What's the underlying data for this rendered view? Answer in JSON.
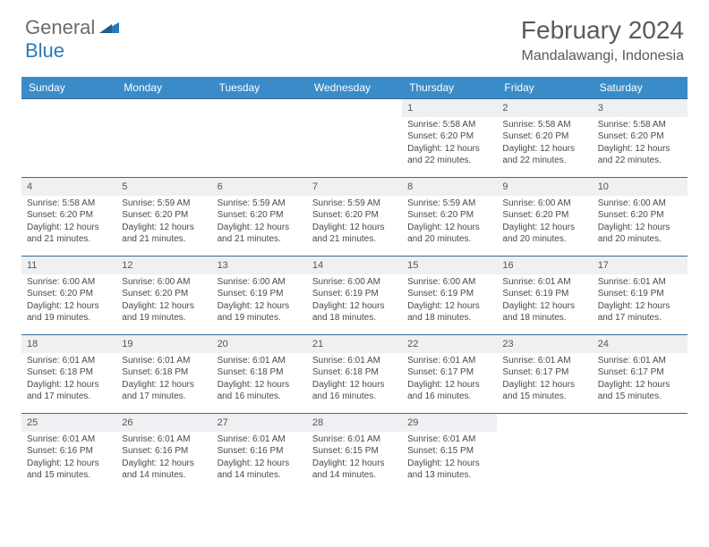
{
  "logo": {
    "text1": "General",
    "text2": "Blue",
    "color_gray": "#6b6b6b",
    "color_blue": "#2a7ab8"
  },
  "title": "February 2024",
  "location": "Mandalawangi, Indonesia",
  "colors": {
    "header_bg": "#3a8cc9",
    "header_text": "#ffffff",
    "daynum_bg": "#eef0f2",
    "border": "#3a6a95",
    "body_text": "#4a4a4a"
  },
  "weekday_labels": [
    "Sunday",
    "Monday",
    "Tuesday",
    "Wednesday",
    "Thursday",
    "Friday",
    "Saturday"
  ],
  "weeks": [
    [
      null,
      null,
      null,
      null,
      {
        "n": "1",
        "sr": "Sunrise: 5:58 AM",
        "ss": "Sunset: 6:20 PM",
        "dl": "Daylight: 12 hours and 22 minutes."
      },
      {
        "n": "2",
        "sr": "Sunrise: 5:58 AM",
        "ss": "Sunset: 6:20 PM",
        "dl": "Daylight: 12 hours and 22 minutes."
      },
      {
        "n": "3",
        "sr": "Sunrise: 5:58 AM",
        "ss": "Sunset: 6:20 PM",
        "dl": "Daylight: 12 hours and 22 minutes."
      }
    ],
    [
      {
        "n": "4",
        "sr": "Sunrise: 5:58 AM",
        "ss": "Sunset: 6:20 PM",
        "dl": "Daylight: 12 hours and 21 minutes."
      },
      {
        "n": "5",
        "sr": "Sunrise: 5:59 AM",
        "ss": "Sunset: 6:20 PM",
        "dl": "Daylight: 12 hours and 21 minutes."
      },
      {
        "n": "6",
        "sr": "Sunrise: 5:59 AM",
        "ss": "Sunset: 6:20 PM",
        "dl": "Daylight: 12 hours and 21 minutes."
      },
      {
        "n": "7",
        "sr": "Sunrise: 5:59 AM",
        "ss": "Sunset: 6:20 PM",
        "dl": "Daylight: 12 hours and 21 minutes."
      },
      {
        "n": "8",
        "sr": "Sunrise: 5:59 AM",
        "ss": "Sunset: 6:20 PM",
        "dl": "Daylight: 12 hours and 20 minutes."
      },
      {
        "n": "9",
        "sr": "Sunrise: 6:00 AM",
        "ss": "Sunset: 6:20 PM",
        "dl": "Daylight: 12 hours and 20 minutes."
      },
      {
        "n": "10",
        "sr": "Sunrise: 6:00 AM",
        "ss": "Sunset: 6:20 PM",
        "dl": "Daylight: 12 hours and 20 minutes."
      }
    ],
    [
      {
        "n": "11",
        "sr": "Sunrise: 6:00 AM",
        "ss": "Sunset: 6:20 PM",
        "dl": "Daylight: 12 hours and 19 minutes."
      },
      {
        "n": "12",
        "sr": "Sunrise: 6:00 AM",
        "ss": "Sunset: 6:20 PM",
        "dl": "Daylight: 12 hours and 19 minutes."
      },
      {
        "n": "13",
        "sr": "Sunrise: 6:00 AM",
        "ss": "Sunset: 6:19 PM",
        "dl": "Daylight: 12 hours and 19 minutes."
      },
      {
        "n": "14",
        "sr": "Sunrise: 6:00 AM",
        "ss": "Sunset: 6:19 PM",
        "dl": "Daylight: 12 hours and 18 minutes."
      },
      {
        "n": "15",
        "sr": "Sunrise: 6:00 AM",
        "ss": "Sunset: 6:19 PM",
        "dl": "Daylight: 12 hours and 18 minutes."
      },
      {
        "n": "16",
        "sr": "Sunrise: 6:01 AM",
        "ss": "Sunset: 6:19 PM",
        "dl": "Daylight: 12 hours and 18 minutes."
      },
      {
        "n": "17",
        "sr": "Sunrise: 6:01 AM",
        "ss": "Sunset: 6:19 PM",
        "dl": "Daylight: 12 hours and 17 minutes."
      }
    ],
    [
      {
        "n": "18",
        "sr": "Sunrise: 6:01 AM",
        "ss": "Sunset: 6:18 PM",
        "dl": "Daylight: 12 hours and 17 minutes."
      },
      {
        "n": "19",
        "sr": "Sunrise: 6:01 AM",
        "ss": "Sunset: 6:18 PM",
        "dl": "Daylight: 12 hours and 17 minutes."
      },
      {
        "n": "20",
        "sr": "Sunrise: 6:01 AM",
        "ss": "Sunset: 6:18 PM",
        "dl": "Daylight: 12 hours and 16 minutes."
      },
      {
        "n": "21",
        "sr": "Sunrise: 6:01 AM",
        "ss": "Sunset: 6:18 PM",
        "dl": "Daylight: 12 hours and 16 minutes."
      },
      {
        "n": "22",
        "sr": "Sunrise: 6:01 AM",
        "ss": "Sunset: 6:17 PM",
        "dl": "Daylight: 12 hours and 16 minutes."
      },
      {
        "n": "23",
        "sr": "Sunrise: 6:01 AM",
        "ss": "Sunset: 6:17 PM",
        "dl": "Daylight: 12 hours and 15 minutes."
      },
      {
        "n": "24",
        "sr": "Sunrise: 6:01 AM",
        "ss": "Sunset: 6:17 PM",
        "dl": "Daylight: 12 hours and 15 minutes."
      }
    ],
    [
      {
        "n": "25",
        "sr": "Sunrise: 6:01 AM",
        "ss": "Sunset: 6:16 PM",
        "dl": "Daylight: 12 hours and 15 minutes."
      },
      {
        "n": "26",
        "sr": "Sunrise: 6:01 AM",
        "ss": "Sunset: 6:16 PM",
        "dl": "Daylight: 12 hours and 14 minutes."
      },
      {
        "n": "27",
        "sr": "Sunrise: 6:01 AM",
        "ss": "Sunset: 6:16 PM",
        "dl": "Daylight: 12 hours and 14 minutes."
      },
      {
        "n": "28",
        "sr": "Sunrise: 6:01 AM",
        "ss": "Sunset: 6:15 PM",
        "dl": "Daylight: 12 hours and 14 minutes."
      },
      {
        "n": "29",
        "sr": "Sunrise: 6:01 AM",
        "ss": "Sunset: 6:15 PM",
        "dl": "Daylight: 12 hours and 13 minutes."
      },
      null,
      null
    ]
  ]
}
